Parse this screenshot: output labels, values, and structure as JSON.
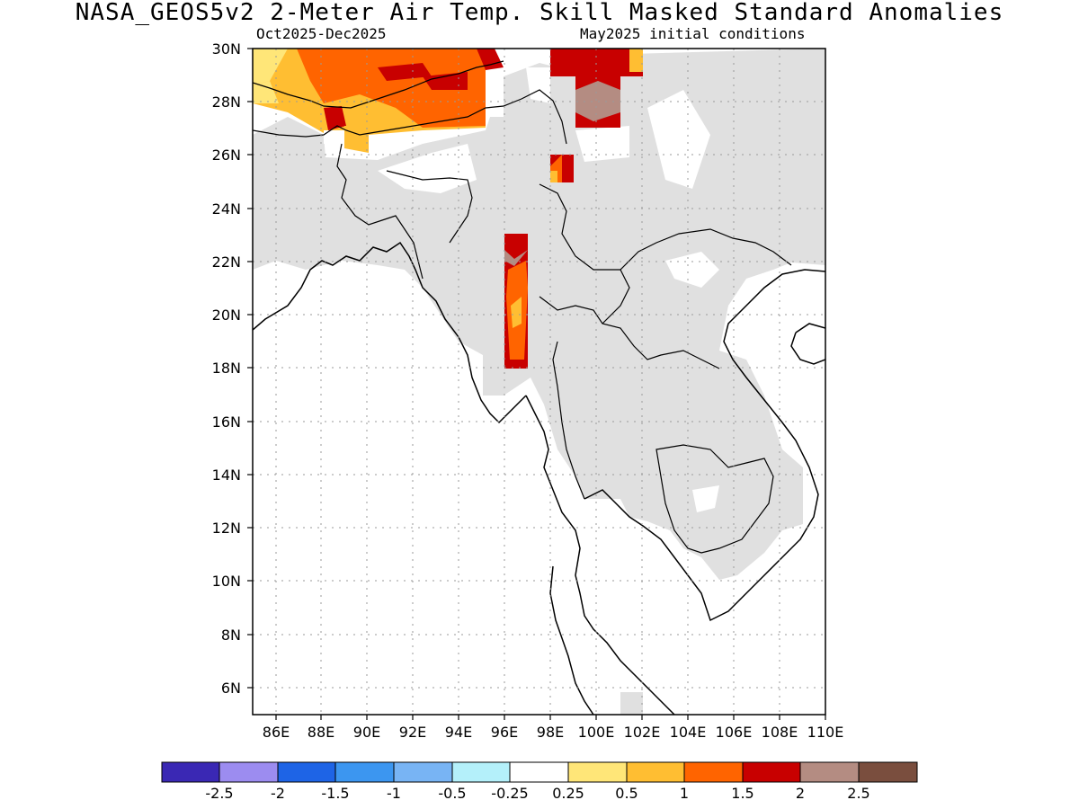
{
  "header": {
    "title": "NASA_GEOS5v2 2-Meter Air Temp. Skill Masked Standard Anomalies",
    "period": "Oct2025-Dec2025",
    "init": "May2025 initial conditions"
  },
  "map": {
    "lon_range": [
      85,
      110
    ],
    "lat_range": [
      5,
      30
    ],
    "grid": "dotted",
    "lat_labels": [
      "30N",
      "28N",
      "26N",
      "24N",
      "22N",
      "20N",
      "18N",
      "16N",
      "14N",
      "12N",
      "10N",
      "8N",
      "6N"
    ],
    "lon_labels": [
      "86E",
      "88E",
      "90E",
      "92E",
      "94E",
      "96E",
      "98E",
      "100E",
      "102E",
      "104E",
      "106E",
      "108E",
      "110E"
    ],
    "mask_color": "#e0e0e0"
  },
  "colorbar": {
    "colors": [
      "#3a28b4",
      "#9c8cf0",
      "#1e64e6",
      "#3c96f0",
      "#78b4f4",
      "#b4f0fa",
      "#ffffff",
      "#ffe678",
      "#ffbe32",
      "#ff6400",
      "#c80000",
      "#b48c82",
      "#7a4e3e"
    ],
    "labels": [
      "-2.5",
      "-2",
      "-1.5",
      "-1",
      "-0.5",
      "-0.25",
      "0.25",
      "0.5",
      "1",
      "1.5",
      "2",
      "2.5"
    ]
  }
}
